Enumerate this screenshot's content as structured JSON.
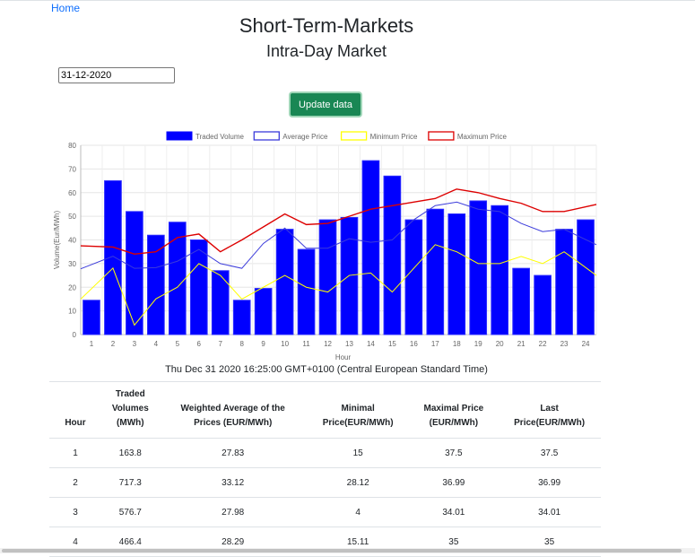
{
  "nav": {
    "home": "Home"
  },
  "header": {
    "title": "Short-Term-Markets",
    "subtitle": "Intra-Day Market"
  },
  "form": {
    "date_value": "31-12-2020",
    "update_label": "Update data"
  },
  "timestamp": "Thu Dec 31 2020 16:25:00 GMT+0100 (Central European Standard Time)",
  "table": {
    "headers": {
      "hour": "Hour",
      "volume": [
        "Traded",
        "Volumes",
        "(MWh)"
      ],
      "avg": [
        "Weighted Average of the",
        "Prices (EUR/MWh)"
      ],
      "min": [
        "Minimal",
        "Price(EUR/MWh)"
      ],
      "max": [
        "Maximal Price",
        "(EUR/MWh)"
      ],
      "last": [
        "Last",
        "Price(EUR/MWh)"
      ]
    },
    "rows": [
      {
        "hour": "1",
        "volume": "163.8",
        "avg": "27.83",
        "min": "15",
        "max": "37.5",
        "last": "37.5"
      },
      {
        "hour": "2",
        "volume": "717.3",
        "avg": "33.12",
        "min": "28.12",
        "max": "36.99",
        "last": "36.99"
      },
      {
        "hour": "3",
        "volume": "576.7",
        "avg": "27.98",
        "min": "4",
        "max": "34.01",
        "last": "34.01"
      },
      {
        "hour": "4",
        "volume": "466.4",
        "avg": "28.29",
        "min": "15.11",
        "max": "35",
        "last": "35"
      }
    ]
  },
  "chart_data": {
    "type": "bar",
    "xlabel": "Hour",
    "ylabel": "Volume(Eur/MWh)",
    "ylim": [
      0,
      80
    ],
    "yticks": [
      0,
      10,
      20,
      30,
      40,
      50,
      60,
      70,
      80
    ],
    "grid": true,
    "legend_position": "top",
    "categories": [
      "1",
      "2",
      "3",
      "4",
      "5",
      "6",
      "7",
      "8",
      "9",
      "10",
      "11",
      "12",
      "13",
      "14",
      "15",
      "16",
      "17",
      "18",
      "19",
      "20",
      "21",
      "22",
      "23",
      "24"
    ],
    "series": [
      {
        "name": "Traded Volume",
        "kind": "bar",
        "color": "#0000ff",
        "values": [
          14.5,
          65,
          52,
          42,
          47.5,
          40,
          27,
          14.5,
          19.5,
          44.5,
          36,
          48.5,
          49.5,
          73.5,
          67,
          48.5,
          53,
          51,
          56.5,
          54.5,
          28,
          25,
          44.5,
          48.5
        ]
      },
      {
        "name": "Average Price",
        "kind": "line",
        "color": "#3b3bdb",
        "values": [
          27.8,
          33.1,
          28,
          28.3,
          31,
          36,
          30,
          28,
          38.5,
          45,
          36.5,
          36.5,
          40.5,
          39,
          40,
          48.5,
          54.5,
          56,
          53,
          52,
          47,
          43.5,
          44.5,
          38
        ]
      },
      {
        "name": "Minimum Price",
        "kind": "line",
        "color": "#ffff00",
        "values": [
          15,
          28.1,
          4,
          15.1,
          20,
          30,
          25,
          15,
          20,
          25,
          20,
          18,
          25,
          26,
          18,
          28,
          38,
          35,
          30,
          30,
          33,
          30,
          35,
          25
        ]
      },
      {
        "name": "Maximum Price",
        "kind": "line",
        "color": "#dd0000",
        "values": [
          37.5,
          37,
          34,
          35,
          41,
          42.5,
          35,
          40,
          45.5,
          51,
          46.5,
          47,
          50,
          53,
          54.5,
          56,
          57.5,
          61.5,
          60,
          57.5,
          55.5,
          52,
          52,
          55
        ]
      }
    ]
  }
}
